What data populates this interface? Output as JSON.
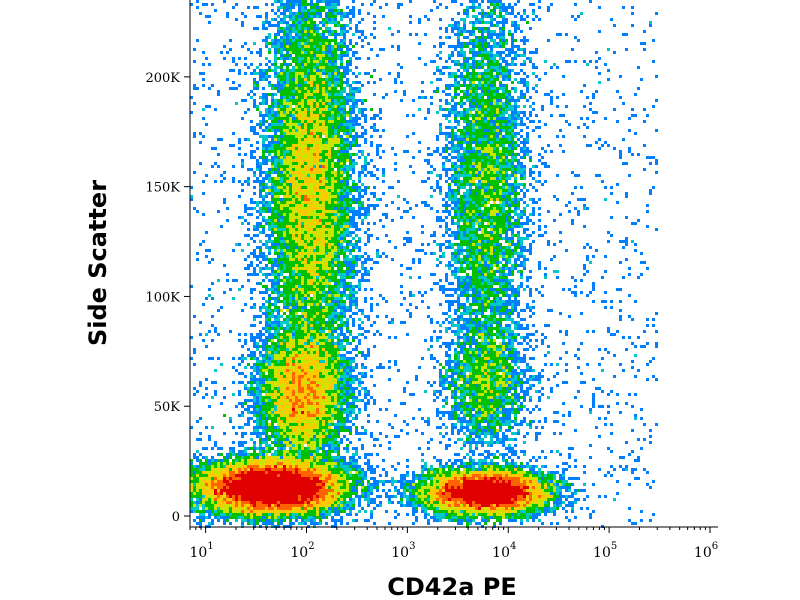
{
  "chart_data": {
    "type": "scatter",
    "style": "flow-cytometry density dot plot",
    "xlabel": "CD42a PE",
    "ylabel": "Side Scatter",
    "x_scale": "log",
    "xlim": [
      7,
      1200000
    ],
    "ylim": [
      -5000,
      235000
    ],
    "x_ticks": [
      {
        "base": "10",
        "exp": "1",
        "value": 10
      },
      {
        "base": "10",
        "exp": "2",
        "value": 100
      },
      {
        "base": "10",
        "exp": "3",
        "value": 1000
      },
      {
        "base": "10",
        "exp": "4",
        "value": 10000
      },
      {
        "base": "10",
        "exp": "5",
        "value": 100000
      },
      {
        "base": "10",
        "exp": "6",
        "value": 1000000
      }
    ],
    "y_ticks": [
      {
        "label": "0",
        "value": 0
      },
      {
        "label": "50K",
        "value": 50000
      },
      {
        "label": "100K",
        "value": 100000
      },
      {
        "label": "150K",
        "value": 150000
      },
      {
        "label": "200K",
        "value": 200000
      }
    ],
    "grid": false,
    "colormap": [
      "#0000cc",
      "#0080ff",
      "#00c8c8",
      "#00c000",
      "#c8e600",
      "#ffc800",
      "#ff6400",
      "#e00000"
    ],
    "populations": [
      {
        "x_center": 110,
        "y_center": 150000,
        "x_spread_decades": 0.22,
        "y_spread": 45000,
        "relative_density": 1.0
      },
      {
        "x_center": 90,
        "y_center": 55000,
        "x_spread_decades": 0.22,
        "y_spread": 15000,
        "relative_density": 0.5
      },
      {
        "x_center": 45,
        "y_center": 13000,
        "x_spread_decades": 0.35,
        "y_spread": 6000,
        "relative_density": 1.3
      },
      {
        "x_center": 6000,
        "y_center": 150000,
        "x_spread_decades": 0.2,
        "y_spread": 45000,
        "relative_density": 0.45
      },
      {
        "x_center": 6000,
        "y_center": 60000,
        "x_spread_decades": 0.2,
        "y_spread": 15000,
        "relative_density": 0.15
      },
      {
        "x_center": 6000,
        "y_center": 11000,
        "x_spread_decades": 0.3,
        "y_spread": 5000,
        "relative_density": 0.8
      }
    ]
  }
}
